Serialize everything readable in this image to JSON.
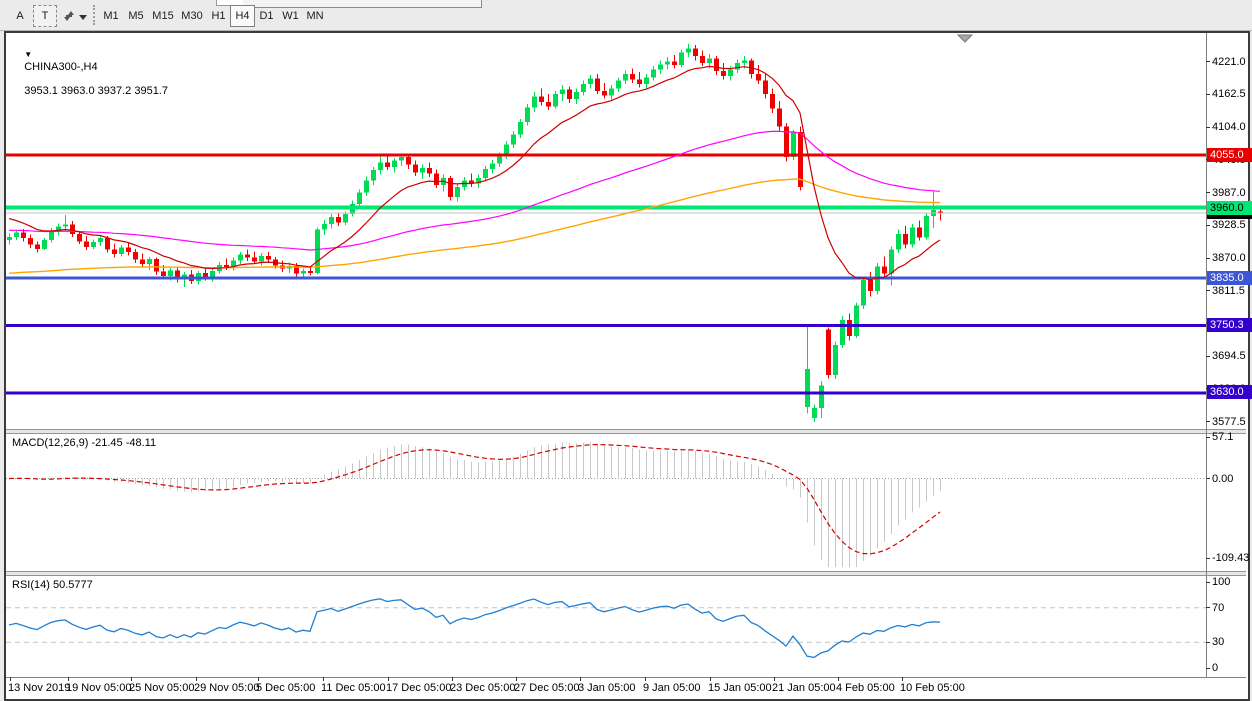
{
  "toolbar": {
    "a_button": "A",
    "t_button": "T",
    "timeframes": [
      "M1",
      "M5",
      "M15",
      "M30",
      "H1",
      "H4",
      "D1",
      "W1",
      "MN"
    ],
    "active_timeframe": "H4"
  },
  "chart_data": {
    "type": "candlestick",
    "symbol": "CHINA300-",
    "timeframe": "H4",
    "title_text": "CHINA300-,H4",
    "ohlc_display": "3953.1 3963.0 3937.2 3951.7",
    "current_bar": {
      "open": 3953.1,
      "high": 3963.0,
      "low": 3937.2,
      "close": 3951.7
    },
    "grid": false,
    "colors": {
      "bull": "#00db55",
      "bear": "#f10000",
      "background": "#ffffff",
      "ma_fast": "#cc0000",
      "ma_medium": "#ff00ff",
      "ma_slow": "#ffa500"
    },
    "price_axis": {
      "ticks": [
        4221.0,
        4162.5,
        4104.0,
        4045.5,
        3987.0,
        3928.5,
        3870.0,
        3811.5,
        3753.0,
        3694.5,
        3636.0,
        3577.5
      ]
    },
    "time_axis": {
      "labels": [
        "13 Nov 2019",
        "19 Nov 05:00",
        "25 Nov 05:00",
        "29 Nov 05:00",
        "5 Dec 05:00",
        "11 Dec 05:00",
        "17 Dec 05:00",
        "23 Dec 05:00",
        "27 Dec 05:00",
        "3 Jan 05:00",
        "9 Jan 05:00",
        "15 Jan 05:00",
        "21 Jan 05:00",
        "4 Feb 05:00",
        "10 Feb 05:00"
      ]
    },
    "horizontal_lines": [
      {
        "price": 4055.0,
        "label": "4055.0",
        "color": "#e80000",
        "text_color": "#ffffff",
        "thickness": 3
      },
      {
        "price": 3960.0,
        "label": "3960.0",
        "color": "#00e673",
        "text_color": "#000000",
        "thickness": 4
      },
      {
        "price": 3835.0,
        "label": "3835.0",
        "color": "#3d56d6",
        "text_color": "#ffffff",
        "thickness": 3
      },
      {
        "price": 3750.3,
        "label": "3750.3",
        "color": "#3300cc",
        "text_color": "#ffffff",
        "thickness": 3
      },
      {
        "price": 3630.0,
        "label": "3630.0",
        "color": "#3300cc",
        "text_color": "#ffffff",
        "thickness": 3
      }
    ],
    "bid_line": {
      "price": 3951.7,
      "label": "3951.7",
      "line_color": "#c0c0c0",
      "badge_color": "#000000",
      "text_color": "#ffffff"
    },
    "moving_averages": [
      {
        "name": "fast",
        "period": 13,
        "color": "#cc0000"
      },
      {
        "name": "medium",
        "period": 80,
        "color": "#ff00ff"
      },
      {
        "name": "slow",
        "period": 160,
        "color": "#ffa500"
      }
    ],
    "indicators": {
      "macd": {
        "display": "MACD(12,26,9) -21.45 -48.11",
        "params": [
          12,
          26,
          9
        ],
        "main_value": -21.45,
        "signal_value": -48.11,
        "axis_ticks": [
          57.1,
          0.0,
          -109.43
        ],
        "histogram_color": "#c8c8c8",
        "signal_color": "#d40000"
      },
      "rsi": {
        "display": "RSI(14) 50.5777",
        "period": 14,
        "value": 50.5777,
        "levels": [
          70,
          30
        ],
        "axis_ticks": [
          100,
          70,
          30,
          0
        ],
        "line_color": "#1f7fd4"
      }
    },
    "candles_ohlc": [
      [
        3902,
        3914,
        3894,
        3908
      ],
      [
        3908,
        3920,
        3902,
        3916
      ],
      [
        3916,
        3922,
        3900,
        3906
      ],
      [
        3906,
        3912,
        3888,
        3894
      ],
      [
        3894,
        3900,
        3880,
        3886
      ],
      [
        3886,
        3906,
        3884,
        3902
      ],
      [
        3902,
        3924,
        3898,
        3918
      ],
      [
        3918,
        3932,
        3910,
        3926
      ],
      [
        3926,
        3947,
        3918,
        3930
      ],
      [
        3930,
        3936,
        3908,
        3913
      ],
      [
        3913,
        3918,
        3895,
        3900
      ],
      [
        3900,
        3909,
        3884,
        3890
      ],
      [
        3890,
        3903,
        3886,
        3899
      ],
      [
        3899,
        3911,
        3892,
        3906
      ],
      [
        3906,
        3909,
        3880,
        3885
      ],
      [
        3885,
        3896,
        3871,
        3877
      ],
      [
        3877,
        3893,
        3873,
        3889
      ],
      [
        3889,
        3898,
        3875,
        3881
      ],
      [
        3881,
        3886,
        3861,
        3867
      ],
      [
        3867,
        3878,
        3854,
        3859
      ],
      [
        3859,
        3872,
        3849,
        3868
      ],
      [
        3868,
        3871,
        3840,
        3846
      ],
      [
        3846,
        3858,
        3832,
        3838
      ],
      [
        3838,
        3852,
        3830,
        3848
      ],
      [
        3848,
        3855,
        3826,
        3832
      ],
      [
        3832,
        3845,
        3818,
        3841
      ],
      [
        3841,
        3849,
        3824,
        3829
      ],
      [
        3829,
        3847,
        3823,
        3843
      ],
      [
        3843,
        3853,
        3830,
        3836
      ],
      [
        3836,
        3851,
        3828,
        3847
      ],
      [
        3847,
        3863,
        3842,
        3858
      ],
      [
        3858,
        3869,
        3849,
        3854
      ],
      [
        3854,
        3871,
        3848,
        3866
      ],
      [
        3866,
        3881,
        3859,
        3876
      ],
      [
        3876,
        3885,
        3865,
        3871
      ],
      [
        3871,
        3882,
        3859,
        3864
      ],
      [
        3864,
        3879,
        3857,
        3874
      ],
      [
        3874,
        3881,
        3861,
        3867
      ],
      [
        3867,
        3872,
        3851,
        3857
      ],
      [
        3857,
        3866,
        3845,
        3851
      ],
      [
        3851,
        3862,
        3843,
        3856
      ],
      [
        3856,
        3861,
        3837,
        3842
      ],
      [
        3842,
        3851,
        3835,
        3847
      ],
      [
        3847,
        3853,
        3839,
        3843
      ],
      [
        3843,
        3925,
        3841,
        3921
      ],
      [
        3921,
        3938,
        3911,
        3931
      ],
      [
        3931,
        3949,
        3923,
        3943
      ],
      [
        3943,
        3951,
        3927,
        3934
      ],
      [
        3934,
        3953,
        3929,
        3949
      ],
      [
        3949,
        3973,
        3944,
        3967
      ],
      [
        3967,
        3993,
        3961,
        3987
      ],
      [
        3987,
        4016,
        3981,
        4009
      ],
      [
        4009,
        4033,
        4001,
        4027
      ],
      [
        4027,
        4056,
        4019,
        4041
      ],
      [
        4041,
        4054,
        4027,
        4033
      ],
      [
        4033,
        4049,
        4023,
        4044
      ],
      [
        4044,
        4056,
        4035,
        4051
      ],
      [
        4051,
        4053,
        4029,
        4037
      ],
      [
        4037,
        4044,
        4017,
        4023
      ],
      [
        4023,
        4037,
        4011,
        4031
      ],
      [
        4031,
        4041,
        4015,
        4021
      ],
      [
        4021,
        4028,
        3995,
        4001
      ],
      [
        4001,
        4019,
        3989,
        4013
      ],
      [
        4013,
        4017,
        3973,
        3979
      ],
      [
        3979,
        4003,
        3971,
        3997
      ],
      [
        3997,
        4015,
        3991,
        4009
      ],
      [
        4009,
        4021,
        3997,
        4003
      ],
      [
        4003,
        4019,
        3995,
        4013
      ],
      [
        4013,
        4035,
        4007,
        4029
      ],
      [
        4029,
        4045,
        4021,
        4039
      ],
      [
        4039,
        4059,
        4033,
        4053
      ],
      [
        4053,
        4079,
        4047,
        4073
      ],
      [
        4073,
        4097,
        4067,
        4091
      ],
      [
        4091,
        4119,
        4085,
        4113
      ],
      [
        4113,
        4145,
        4107,
        4139
      ],
      [
        4139,
        4167,
        4131,
        4159
      ],
      [
        4159,
        4173,
        4143,
        4149
      ],
      [
        4149,
        4163,
        4135,
        4141
      ],
      [
        4141,
        4169,
        4137,
        4163
      ],
      [
        4163,
        4179,
        4151,
        4171
      ],
      [
        4171,
        4177,
        4147,
        4154
      ],
      [
        4154,
        4173,
        4145,
        4167
      ],
      [
        4167,
        4187,
        4161,
        4181
      ],
      [
        4181,
        4197,
        4173,
        4191
      ],
      [
        4191,
        4199,
        4163,
        4169
      ],
      [
        4169,
        4183,
        4155,
        4161
      ],
      [
        4161,
        4179,
        4153,
        4173
      ],
      [
        4173,
        4193,
        4167,
        4187
      ],
      [
        4187,
        4205,
        4181,
        4199
      ],
      [
        4199,
        4209,
        4183,
        4189
      ],
      [
        4189,
        4203,
        4175,
        4181
      ],
      [
        4181,
        4199,
        4173,
        4193
      ],
      [
        4193,
        4213,
        4187,
        4207
      ],
      [
        4207,
        4223,
        4199,
        4216
      ],
      [
        4216,
        4229,
        4207,
        4221
      ],
      [
        4221,
        4233,
        4209,
        4215
      ],
      [
        4215,
        4243,
        4211,
        4237
      ],
      [
        4237,
        4253,
        4229,
        4245
      ],
      [
        4245,
        4251,
        4223,
        4231
      ],
      [
        4231,
        4241,
        4213,
        4219
      ],
      [
        4219,
        4235,
        4209,
        4227
      ],
      [
        4227,
        4231,
        4197,
        4204
      ],
      [
        4204,
        4219,
        4189,
        4195
      ],
      [
        4195,
        4213,
        4187,
        4207
      ],
      [
        4207,
        4225,
        4201,
        4219
      ],
      [
        4219,
        4231,
        4209,
        4223
      ],
      [
        4223,
        4227,
        4191,
        4199
      ],
      [
        4199,
        4215,
        4181,
        4187
      ],
      [
        4187,
        4199,
        4155,
        4163
      ],
      [
        4163,
        4173,
        4129,
        4137
      ],
      [
        4137,
        4151,
        4097,
        4105
      ],
      [
        4105,
        4111,
        4043,
        4051
      ],
      [
        4051,
        4099,
        4045,
        4095
      ],
      [
        4095,
        4105,
        3991,
        3997
      ],
      [
        3604,
        3747,
        3592,
        3672
      ],
      [
        3584,
        3608,
        3577,
        3602
      ],
      [
        3602,
        3650,
        3584,
        3642
      ],
      [
        3742,
        3746,
        3655,
        3661
      ],
      [
        3661,
        3721,
        3654,
        3715
      ],
      [
        3715,
        3766,
        3709,
        3759
      ],
      [
        3759,
        3771,
        3723,
        3731
      ],
      [
        3731,
        3791,
        3727,
        3785
      ],
      [
        3785,
        3837,
        3779,
        3831
      ],
      [
        3831,
        3845,
        3801,
        3811
      ],
      [
        3811,
        3861,
        3805,
        3855
      ],
      [
        3855,
        3873,
        3835,
        3842
      ],
      [
        3842,
        3891,
        3821,
        3885
      ],
      [
        3885,
        3921,
        3879,
        3913
      ],
      [
        3913,
        3927,
        3887,
        3894
      ],
      [
        3894,
        3931,
        3889,
        3925
      ],
      [
        3925,
        3937,
        3901,
        3907
      ],
      [
        3907,
        3951,
        3903,
        3945
      ],
      [
        3945,
        3990,
        3924,
        3956
      ],
      [
        3953.1,
        3963.0,
        3937.2,
        3951.7
      ]
    ]
  }
}
